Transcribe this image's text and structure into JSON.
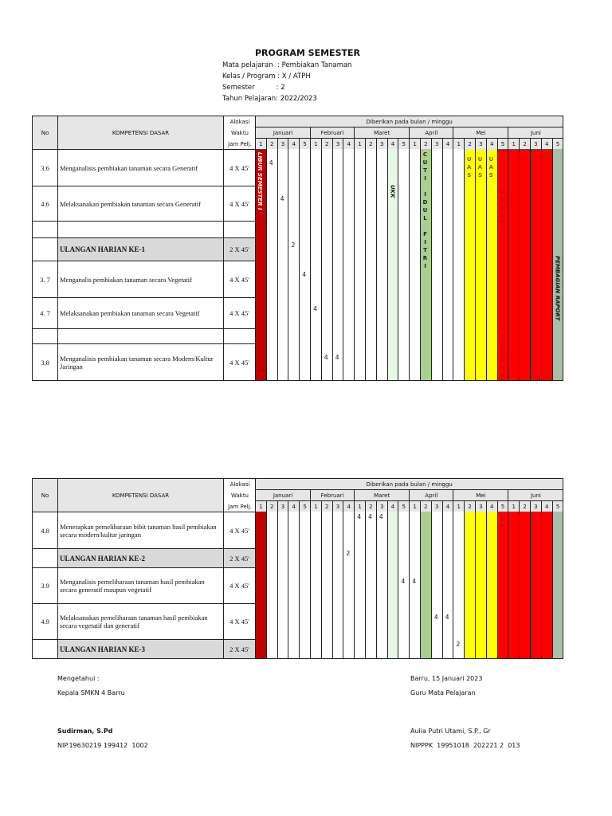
{
  "header": {
    "title": "PROGRAM SEMESTER",
    "lines": [
      "Mata pelajaran  : Pembiakan Tanaman",
      "Kelas / Program : X / ATPH",
      "Semester          : 2",
      "Tahun Pelajaran: 2022/2023"
    ]
  },
  "columns": {
    "no": "No",
    "kd": "KOMPETENSI DASAR",
    "alokasi": [
      "Alokasi",
      "Waktu",
      "Jam Pelj."
    ],
    "span_title": "Diberikan pada bulan / minggu",
    "months": [
      {
        "name": "Januari",
        "weeks": 5
      },
      {
        "name": "Februari",
        "weeks": 4
      },
      {
        "name": "Maret",
        "weeks": 5
      },
      {
        "name": "April",
        "weeks": 4
      },
      {
        "name": "Mei",
        "weeks": 5
      },
      {
        "name": "Juni",
        "weeks": 5
      }
    ]
  },
  "colors": {
    "libur": "#c00000",
    "ukk": "#e6f8e6",
    "cuti": "#a9d08e",
    "uas": "#ffff00",
    "ujian": "#ff0000",
    "rapor": "#a9bfa9",
    "header_bg": "#e6e6e6",
    "ulangan_bg": "#d9d9d9"
  },
  "tables": [
    {
      "rows": [
        {
          "no": "3.6",
          "kd": "Menganalisis pembiakan tanaman secara Generatif",
          "waktu": "4 X 45'"
        },
        {
          "no": "4.6",
          "kd": "Melaksanakan  pembiakan tanaman secara Generatif",
          "waktu": "4 X 45'"
        },
        {
          "no": "",
          "kd": "",
          "waktu": ""
        },
        {
          "no": "",
          "kd": "ULANGAN HARIAN KE-1",
          "waktu": "2 X 45'",
          "ulangan": true
        },
        {
          "no": "3. 7",
          "kd": "Menganalis pembiakan tanaman secara Vegetatif",
          "waktu": "4 X 45'"
        },
        {
          "no": "4. 7",
          "kd": "Melaksanakan pembiakan tanaman secara Vegetatif",
          "waktu": "4 X 45'"
        },
        {
          "no": "",
          "kd": "",
          "waktu": ""
        },
        {
          "no": "3.8",
          "kd": "Menganalisis pembiakan tanaman secara Modern/Kultur Jaringan",
          "waktu": "4 X 45'"
        }
      ],
      "marks": [
        {
          "week": 2,
          "row": 0,
          "value": "4"
        },
        {
          "week": 3,
          "row": 1,
          "value": "4"
        },
        {
          "week": 4,
          "row": 3,
          "value": "2"
        },
        {
          "week": 5,
          "row": 4,
          "value": "4"
        },
        {
          "week": 6,
          "row": 5,
          "value": "4"
        },
        {
          "week": 7,
          "row": 7,
          "value": "4"
        },
        {
          "week": 8,
          "row": 7,
          "value": "4"
        }
      ],
      "labels": {
        "libur": "LIBUR SEMESTER I",
        "ukk": "UKK",
        "cuti": "C\nU\nT\nI\n \nI\nD\nU\nL\n \nF\nI\nT\nR\nI",
        "uas": [
          "U\nA\nS",
          "U\nA\nS",
          "U\nA\nS"
        ],
        "ujian_top": "U\nJ\nI\nA\nN",
        "ujian_bottom": "S\nE\nM\nE\nS\nT",
        "rapor": "PEMBAGIAN RAPORT"
      }
    },
    {
      "rows": [
        {
          "no": "4.8",
          "kd": "Menerapkan pemeliharaan bibit tanaman hasil pembiakan secara modern/kultur jaringan",
          "waktu": "4 X 45'"
        },
        {
          "no": "",
          "kd": "ULANGAN HARIAN KE-2",
          "waktu": "2 X 45'",
          "ulangan": true
        },
        {
          "no": "3.9",
          "kd": "Menganalisis pemeliharaan tanaman hasil pembiakan secara generatif maupun vegetatif",
          "waktu": "4 X 45'"
        },
        {
          "no": "4.9",
          "kd": "Melaksanakan pemeliharaan tanaman hasil pembiakan secara vegetatif dan generatif",
          "waktu": "4 X 45'"
        },
        {
          "no": "",
          "kd": "ULANGAN HARIAN KE-3",
          "waktu": "2 X 45'",
          "ulangan": true
        }
      ],
      "marks": [
        {
          "week": 10,
          "row": 0,
          "value": "4"
        },
        {
          "week": 11,
          "row": 0,
          "value": "4"
        },
        {
          "week": 12,
          "row": 0,
          "value": "4"
        },
        {
          "week": 9,
          "row": 1,
          "value": "2"
        },
        {
          "week": 14,
          "row": 2,
          "value": "4"
        },
        {
          "week": 15,
          "row": 2,
          "value": "4"
        },
        {
          "week": 18,
          "row": 3,
          "value": "4"
        },
        {
          "week": 17,
          "row": 3,
          "value": "4"
        },
        {
          "week": 19,
          "row": 4,
          "value": "2"
        }
      ],
      "labels": {
        "ujian_top": "E\nR"
      }
    }
  ],
  "footer": {
    "left": [
      "Mengetahui :",
      "Kepala SMKN 4 Barru"
    ],
    "left_name": "Sudirman, S.Pd",
    "left_nip": "NIP.19630219 199412  1002",
    "right": [
      "Barru, 15 Januari 2023",
      "Guru Mata Pelajaran"
    ],
    "right_name": "Aulia Putri Utami, S.P., Gr",
    "right_nip": "NIPPPK  19951018  202221 2  013"
  }
}
